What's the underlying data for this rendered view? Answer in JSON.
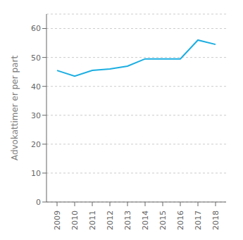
{
  "chart_data": {
    "type": "line",
    "x": [
      2009,
      2010,
      2011,
      2012,
      2013,
      2014,
      2015,
      2016,
      2017,
      2018
    ],
    "values": [
      45.5,
      43.5,
      45.5,
      46.0,
      47.0,
      49.5,
      49.5,
      49.5,
      56.0,
      54.5
    ],
    "color": "#1baee1",
    "ylabel": "Advokattimer er per part",
    "xlim": [
      2008.4,
      2018.6
    ],
    "xticks": [
      2009,
      2010,
      2011,
      2012,
      2013,
      2014,
      2015,
      2016,
      2017,
      2018
    ],
    "ylim": [
      0,
      65
    ],
    "yticks": [
      0,
      10,
      20,
      30,
      40,
      50,
      60
    ],
    "grid": "y"
  }
}
